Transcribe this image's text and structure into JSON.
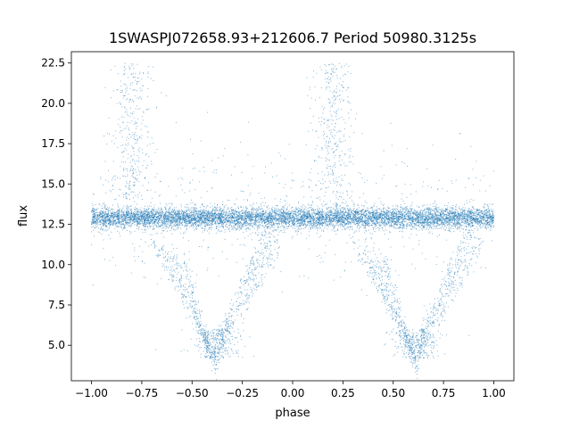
{
  "chart_data": {
    "type": "scatter",
    "title": "1SWASPJ072658.93+212606.7 Period 50980.3125s",
    "xlabel": "phase",
    "ylabel": "flux",
    "xlim": [
      -1.1,
      1.1
    ],
    "ylim": [
      2.8,
      23.2
    ],
    "xticks": [
      -1.0,
      -0.75,
      -0.5,
      -0.25,
      0.0,
      0.25,
      0.5,
      0.75,
      1.0
    ],
    "xtick_labels": [
      "−1.00",
      "−0.75",
      "−0.50",
      "−0.25",
      "0.00",
      "0.25",
      "0.50",
      "0.75",
      "1.00"
    ],
    "yticks": [
      5.0,
      7.5,
      10.0,
      12.5,
      15.0,
      17.5,
      20.0,
      22.5
    ],
    "ytick_labels": [
      "5.0",
      "7.5",
      "10.0",
      "12.5",
      "15.0",
      "17.5",
      "20.0",
      "22.5"
    ],
    "grid": false,
    "point_color": "#1f77b4",
    "series": [
      {
        "x_range": [
          -1.0,
          1.0
        ],
        "baseline_flux": 12.9,
        "baseline_spread": 0.6,
        "upper_excursions": [
          {
            "phase": -0.8,
            "flux_max": 22.5
          },
          {
            "phase": 0.2,
            "flux_max": 22.5
          }
        ],
        "lower_dips": [
          {
            "phase_start": -0.7,
            "phase_min": -0.38,
            "phase_end": -0.05,
            "flux_min": 4.2
          },
          {
            "phase_start": 0.3,
            "phase_min": 0.62,
            "phase_end": 0.95,
            "flux_min": 4.2
          }
        ]
      }
    ]
  }
}
